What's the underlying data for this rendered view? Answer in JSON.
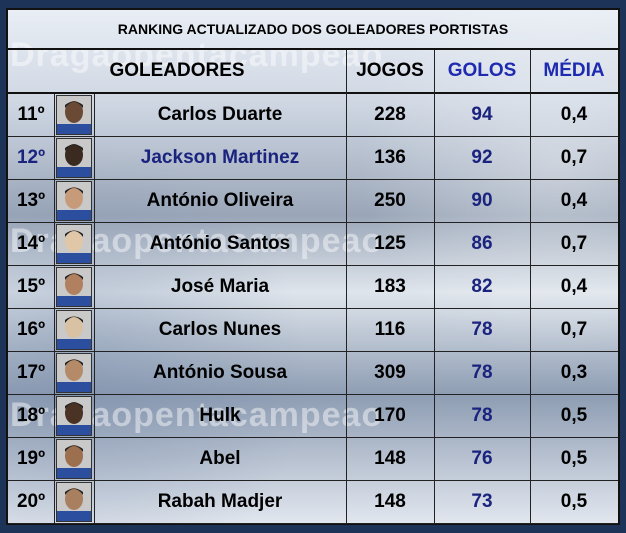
{
  "title": "RANKING ACTUALIZADO DOS GOLEADORES PORTISTAS",
  "watermark": "Dragaopentacampeao",
  "headers": {
    "goleadores": "GOLEADORES",
    "jogos": "JOGOS",
    "golos": "GOLOS",
    "media": "MÉDIA"
  },
  "colors": {
    "golos_value": "#1a237e",
    "highlight_name": "#1a237e",
    "header_accent": "#1e2bb0"
  },
  "rows": [
    {
      "rank": "11º",
      "name": "Carlos Duarte",
      "jogos": "228",
      "golos": "94",
      "media": "0,4",
      "highlight": false
    },
    {
      "rank": "12º",
      "name": "Jackson Martinez",
      "jogos": "136",
      "golos": "92",
      "media": "0,7",
      "highlight": true
    },
    {
      "rank": "13º",
      "name": "António Oliveira",
      "jogos": "250",
      "golos": "90",
      "media": "0,4",
      "highlight": false
    },
    {
      "rank": "14º",
      "name": "António Santos",
      "jogos": "125",
      "golos": "86",
      "media": "0,7",
      "highlight": false
    },
    {
      "rank": "15º",
      "name": "José Maria",
      "jogos": "183",
      "golos": "82",
      "media": "0,4",
      "highlight": false
    },
    {
      "rank": "16º",
      "name": "Carlos Nunes",
      "jogos": "116",
      "golos": "78",
      "media": "0,7",
      "highlight": false
    },
    {
      "rank": "17º",
      "name": "António Sousa",
      "jogos": "309",
      "golos": "78",
      "media": "0,3",
      "highlight": false
    },
    {
      "rank": "18º",
      "name": "Hulk",
      "jogos": "170",
      "golos": "78",
      "media": "0,5",
      "highlight": false
    },
    {
      "rank": "19º",
      "name": "Abel",
      "jogos": "148",
      "golos": "76",
      "media": "0,5",
      "highlight": false
    },
    {
      "rank": "20º",
      "name": "Rabah Madjer",
      "jogos": "148",
      "golos": "73",
      "media": "0,5",
      "highlight": false
    }
  ]
}
